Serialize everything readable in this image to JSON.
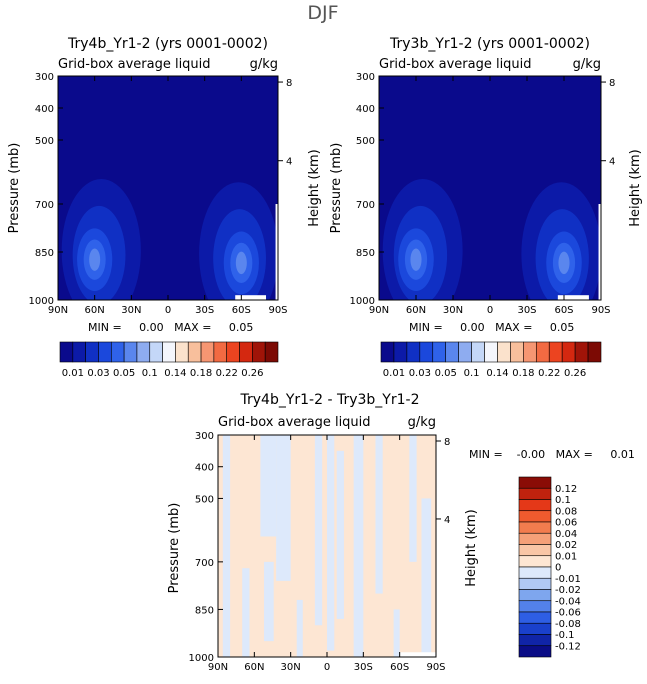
{
  "figure_title": "DJF",
  "chart_data": [
    {
      "type": "heatmap",
      "title": "Try4b_Yr1-2 (yrs 0001-0002)",
      "subtitle_left": "Grid-box average liquid",
      "subtitle_right": "g/kg",
      "ylabel": "Pressure (mb)",
      "ylabel_right": "Height (km)",
      "x_ticks": [
        "90N",
        "60N",
        "30N",
        "0",
        "30S",
        "60S",
        "90S"
      ],
      "y_ticks": [
        "300",
        "400",
        "500",
        "700",
        "850",
        "1000"
      ],
      "y_values": [
        300,
        400,
        500,
        700,
        850,
        1000
      ],
      "ylim": [
        1000,
        300
      ],
      "height_ticks": [
        "8",
        "4"
      ],
      "height_values": [
        8,
        4
      ],
      "stats": "MIN =     0.00   MAX =     0.05",
      "min": 0.0,
      "max": 0.05,
      "features": [
        {
          "lat": 60,
          "p": 860,
          "peak": 0.05
        },
        {
          "lat": -60,
          "p": 870,
          "peak": 0.05
        }
      ]
    },
    {
      "type": "heatmap",
      "title": "Try3b_Yr1-2 (yrs 0001-0002)",
      "subtitle_left": "Grid-box average liquid",
      "subtitle_right": "g/kg",
      "ylabel": "Pressure (mb)",
      "ylabel_right": "Height (km)",
      "x_ticks": [
        "90N",
        "60N",
        "30N",
        "0",
        "30S",
        "60S",
        "90S"
      ],
      "y_ticks": [
        "300",
        "400",
        "500",
        "700",
        "850",
        "1000"
      ],
      "y_values": [
        300,
        400,
        500,
        700,
        850,
        1000
      ],
      "ylim": [
        1000,
        300
      ],
      "height_ticks": [
        "8",
        "4"
      ],
      "height_values": [
        8,
        4
      ],
      "stats": "MIN =     0.00   MAX =     0.05",
      "min": 0.0,
      "max": 0.05,
      "features": [
        {
          "lat": 60,
          "p": 860,
          "peak": 0.05
        },
        {
          "lat": -60,
          "p": 870,
          "peak": 0.05
        }
      ]
    },
    {
      "type": "heatmap",
      "title": "Try4b_Yr1-2 - Try3b_Yr1-2",
      "subtitle_left": "Grid-box average liquid",
      "subtitle_right": "g/kg",
      "ylabel": "Pressure (mb)",
      "ylabel_right": "Height (km)",
      "x_ticks": [
        "90N",
        "60N",
        "30N",
        "0",
        "30S",
        "60S",
        "90S"
      ],
      "y_ticks": [
        "300",
        "400",
        "500",
        "700",
        "850",
        "1000"
      ],
      "y_values": [
        300,
        400,
        500,
        700,
        850,
        1000
      ],
      "ylim": [
        1000,
        300
      ],
      "height_ticks": [
        "8",
        "4"
      ],
      "height_values": [
        8,
        4
      ],
      "stats": "MIN =    -0.00   MAX =     0.01",
      "min": -0.0,
      "max": 0.01
    }
  ],
  "colorbar_abs": {
    "labels": [
      "0.01",
      "0.03",
      "0.05",
      "0.1",
      "0.14",
      "0.18",
      "0.22",
      "0.26"
    ],
    "colors": [
      "#0a0a8c",
      "#0c1aa8",
      "#1030c4",
      "#1b48dc",
      "#2f62ea",
      "#5a86ee",
      "#8eacf0",
      "#c4d7f8",
      "#f4f6fc",
      "#fbe2cc",
      "#f8bf9c",
      "#f69672",
      "#f26a42",
      "#ec4420",
      "#d42810",
      "#a01408",
      "#7c0a04"
    ]
  },
  "colorbar_diff": {
    "labels": [
      "0.12",
      "0.1",
      "0.08",
      "0.06",
      "0.04",
      "0.02",
      "0.01",
      "0",
      "-0.01",
      "-0.02",
      "-0.04",
      "-0.06",
      "-0.08",
      "-0.1",
      "-0.12"
    ],
    "colors": [
      "#8a0c06",
      "#c0220e",
      "#e43818",
      "#ef5a2e",
      "#f27c4e",
      "#f5a078",
      "#f9c6a6",
      "#fde6d3",
      "#dde9fb",
      "#b0c9f4",
      "#7ea6ee",
      "#5381ea",
      "#2e5ee4",
      "#1a40cc",
      "#1024a8",
      "#0a0c86"
    ]
  },
  "diff_fill": {
    "positive": "#fde6d3",
    "negative": "#dde9fb"
  }
}
